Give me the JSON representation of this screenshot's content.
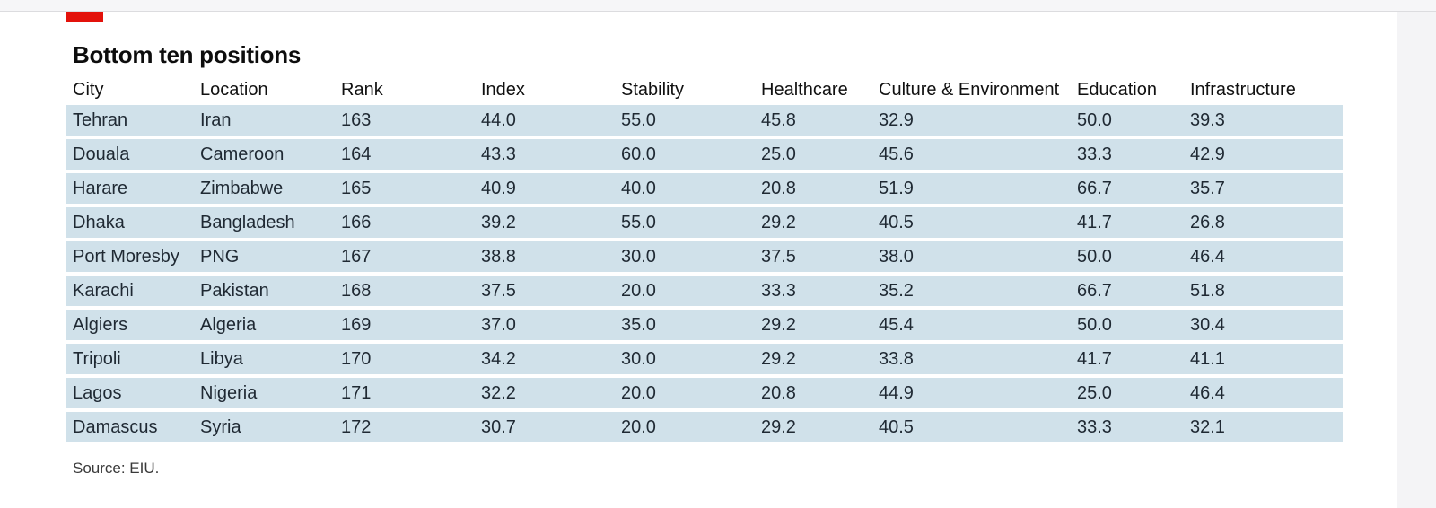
{
  "title": "Bottom ten positions",
  "columns": [
    "City",
    "Location",
    "Rank",
    "Index",
    "Stability",
    "Healthcare",
    "Culture & Environment",
    "Education",
    "Infrastructure"
  ],
  "rows": [
    [
      "Tehran",
      "Iran",
      "163",
      "44.0",
      "55.0",
      "45.8",
      "32.9",
      "50.0",
      "39.3"
    ],
    [
      "Douala",
      "Cameroon",
      "164",
      "43.3",
      "60.0",
      "25.0",
      "45.6",
      "33.3",
      "42.9"
    ],
    [
      "Harare",
      "Zimbabwe",
      "165",
      "40.9",
      "40.0",
      "20.8",
      "51.9",
      "66.7",
      "35.7"
    ],
    [
      "Dhaka",
      "Bangladesh",
      "166",
      "39.2",
      "55.0",
      "29.2",
      "40.5",
      "41.7",
      "26.8"
    ],
    [
      "Port Moresby",
      "PNG",
      "167",
      "38.8",
      "30.0",
      "37.5",
      "38.0",
      "50.0",
      "46.4"
    ],
    [
      "Karachi",
      "Pakistan",
      "168",
      "37.5",
      "20.0",
      "33.3",
      "35.2",
      "66.7",
      "51.8"
    ],
    [
      "Algiers",
      "Algeria",
      "169",
      "37.0",
      "35.0",
      "29.2",
      "45.4",
      "50.0",
      "30.4"
    ],
    [
      "Tripoli",
      "Libya",
      "170",
      "34.2",
      "30.0",
      "29.2",
      "33.8",
      "41.7",
      "41.1"
    ],
    [
      "Lagos",
      "Nigeria",
      "171",
      "32.2",
      "20.0",
      "20.8",
      "44.9",
      "25.0",
      "46.4"
    ],
    [
      "Damascus",
      "Syria",
      "172",
      "30.7",
      "20.0",
      "29.2",
      "40.5",
      "33.3",
      "32.1"
    ]
  ],
  "source": "Source: EIU.",
  "colors": {
    "accent": "#e3120b",
    "row_background": "#d0e1ea"
  }
}
